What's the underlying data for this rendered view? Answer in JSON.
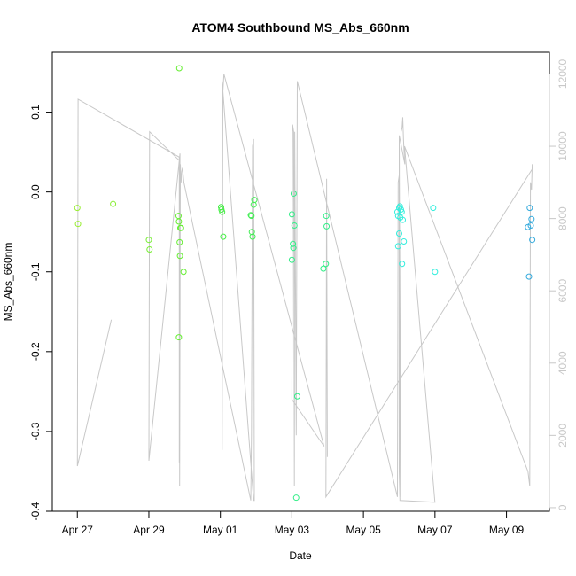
{
  "chart_data": {
    "type": "scatter",
    "title": "ATOM4 Southbound MS_Abs_660nm",
    "xlabel": "Date",
    "ylabel": "MS_Abs_660nm",
    "x_ticks": [
      {
        "label": "Apr 27",
        "day": 0
      },
      {
        "label": "Apr 29",
        "day": 2
      },
      {
        "label": "May 01",
        "day": 4
      },
      {
        "label": "May 03",
        "day": 6
      },
      {
        "label": "May 05",
        "day": 8
      },
      {
        "label": "May 07",
        "day": 10
      },
      {
        "label": "May 09",
        "day": 12
      }
    ],
    "xlim_days": [
      -0.7,
      13.2
    ],
    "ylim": [
      -0.4,
      0.175
    ],
    "y_ticks": [
      {
        "label": "0.1",
        "value": 0.1
      },
      {
        "label": "0.0",
        "value": 0.0
      },
      {
        "label": "-0.1",
        "value": -0.1
      },
      {
        "label": "-0.2",
        "value": -0.2
      },
      {
        "label": "-0.3",
        "value": -0.3
      },
      {
        "label": "-0.4",
        "value": -0.4
      }
    ],
    "y2_label": "",
    "y2lim": [
      -100,
      12600
    ],
    "y2_ticks": [
      {
        "label": "0",
        "value": 0
      },
      {
        "label": "2000",
        "value": 2000
      },
      {
        "label": "4000",
        "value": 4000
      },
      {
        "label": "6000",
        "value": 6000
      },
      {
        "label": "8000",
        "value": 8000
      },
      {
        "label": "10000",
        "value": 10000
      },
      {
        "label": "12000",
        "value": 12000
      }
    ],
    "points": [
      {
        "day": 0.0,
        "y": -0.02,
        "color": "#99ee33"
      },
      {
        "day": 0.02,
        "y": -0.04,
        "color": "#99ee33"
      },
      {
        "day": 1.0,
        "y": -0.015,
        "color": "#88ee33"
      },
      {
        "day": 2.0,
        "y": -0.06,
        "color": "#77ee33"
      },
      {
        "day": 2.02,
        "y": -0.072,
        "color": "#77ee33"
      },
      {
        "day": 2.85,
        "y": 0.155,
        "color": "#66ee33"
      },
      {
        "day": 2.83,
        "y": -0.03,
        "color": "#66ee33"
      },
      {
        "day": 2.84,
        "y": -0.037,
        "color": "#66ee33"
      },
      {
        "day": 2.88,
        "y": -0.045,
        "color": "#66ee33"
      },
      {
        "day": 2.9,
        "y": -0.045,
        "color": "#66ee33"
      },
      {
        "day": 2.86,
        "y": -0.063,
        "color": "#66ee33"
      },
      {
        "day": 2.87,
        "y": -0.08,
        "color": "#66ee33"
      },
      {
        "day": 2.97,
        "y": -0.1,
        "color": "#66ee33"
      },
      {
        "day": 2.84,
        "y": -0.182,
        "color": "#66ee33"
      },
      {
        "day": 4.02,
        "y": -0.019,
        "color": "#44ee44"
      },
      {
        "day": 4.03,
        "y": -0.022,
        "color": "#44ee44"
      },
      {
        "day": 4.05,
        "y": -0.025,
        "color": "#44ee44"
      },
      {
        "day": 4.08,
        "y": -0.056,
        "color": "#44ee44"
      },
      {
        "day": 4.85,
        "y": -0.029,
        "color": "#44ee55"
      },
      {
        "day": 4.87,
        "y": -0.03,
        "color": "#44ee55"
      },
      {
        "day": 4.88,
        "y": -0.05,
        "color": "#44ee55"
      },
      {
        "day": 4.9,
        "y": -0.056,
        "color": "#44ee55"
      },
      {
        "day": 4.93,
        "y": -0.016,
        "color": "#44ee55"
      },
      {
        "day": 4.95,
        "y": -0.01,
        "color": "#44ee55"
      },
      {
        "day": 6.0,
        "y": -0.028,
        "color": "#33ee88"
      },
      {
        "day": 6.05,
        "y": -0.002,
        "color": "#33ee88"
      },
      {
        "day": 6.07,
        "y": -0.042,
        "color": "#33ee88"
      },
      {
        "day": 6.03,
        "y": -0.065,
        "color": "#33ee88"
      },
      {
        "day": 6.04,
        "y": -0.07,
        "color": "#33ee88"
      },
      {
        "day": 6.0,
        "y": -0.085,
        "color": "#33ee88"
      },
      {
        "day": 6.15,
        "y": -0.256,
        "color": "#33ee88"
      },
      {
        "day": 6.12,
        "y": -0.383,
        "color": "#33ee88"
      },
      {
        "day": 6.88,
        "y": -0.096,
        "color": "#33ee88"
      },
      {
        "day": 6.95,
        "y": -0.09,
        "color": "#33ee88"
      },
      {
        "day": 6.96,
        "y": -0.03,
        "color": "#33ee88"
      },
      {
        "day": 6.97,
        "y": -0.043,
        "color": "#33ee88"
      },
      {
        "day": 8.95,
        "y": -0.025,
        "color": "#33eedd"
      },
      {
        "day": 8.97,
        "y": -0.03,
        "color": "#33eedd"
      },
      {
        "day": 9.0,
        "y": -0.02,
        "color": "#33eedd"
      },
      {
        "day": 9.02,
        "y": -0.018,
        "color": "#33eedd"
      },
      {
        "day": 9.05,
        "y": -0.022,
        "color": "#33eedd"
      },
      {
        "day": 9.07,
        "y": -0.025,
        "color": "#33eedd"
      },
      {
        "day": 9.03,
        "y": -0.032,
        "color": "#33eedd"
      },
      {
        "day": 9.1,
        "y": -0.035,
        "color": "#33eedd"
      },
      {
        "day": 9.0,
        "y": -0.052,
        "color": "#33eedd"
      },
      {
        "day": 9.13,
        "y": -0.062,
        "color": "#33eedd"
      },
      {
        "day": 8.97,
        "y": -0.068,
        "color": "#33eedd"
      },
      {
        "day": 9.08,
        "y": -0.09,
        "color": "#33eedd"
      },
      {
        "day": 9.95,
        "y": -0.02,
        "color": "#33eedd"
      },
      {
        "day": 10.0,
        "y": -0.1,
        "color": "#33eedd"
      },
      {
        "day": 12.65,
        "y": -0.02,
        "color": "#33aadd"
      },
      {
        "day": 12.7,
        "y": -0.034,
        "color": "#33aadd"
      },
      {
        "day": 12.68,
        "y": -0.042,
        "color": "#33aadd"
      },
      {
        "day": 12.6,
        "y": -0.044,
        "color": "#33aadd"
      },
      {
        "day": 12.72,
        "y": -0.06,
        "color": "#33aadd"
      },
      {
        "day": 12.63,
        "y": -0.106,
        "color": "#33aadd"
      }
    ],
    "secondary_line": {
      "color": "#c8c8c8",
      "y2_values": [
        {
          "day": 0.95,
          "v": 5200
        },
        {
          "day": 0.0,
          "v": 1150
        },
        {
          "day": 0.02,
          "v": 11300
        },
        {
          "day": 2.85,
          "v": 9700
        },
        {
          "day": 2.85,
          "v": 1250
        },
        {
          "day": 2.87,
          "v": 9800
        },
        {
          "day": 2.0,
          "v": 1300
        },
        {
          "day": 2.02,
          "v": 10400
        },
        {
          "day": 2.86,
          "v": 9600
        },
        {
          "day": 2.86,
          "v": 600
        },
        {
          "day": 2.88,
          "v": 9500
        },
        {
          "day": 2.9,
          "v": 9000
        },
        {
          "day": 2.92,
          "v": 9300
        },
        {
          "day": 2.94,
          "v": 9400
        },
        {
          "day": 2.96,
          "v": 9200
        },
        {
          "day": 2.98,
          "v": 9000
        },
        {
          "day": 4.85,
          "v": 200
        },
        {
          "day": 4.87,
          "v": 2000
        },
        {
          "day": 4.9,
          "v": 10000
        },
        {
          "day": 4.93,
          "v": 10200
        },
        {
          "day": 4.95,
          "v": 200
        },
        {
          "day": 4.93,
          "v": 200
        },
        {
          "day": 4.05,
          "v": 11800
        },
        {
          "day": 4.05,
          "v": 1600
        },
        {
          "day": 4.07,
          "v": 11500
        },
        {
          "day": 4.1,
          "v": 12000
        },
        {
          "day": 6.9,
          "v": 1700
        },
        {
          "day": 6.0,
          "v": 3000
        },
        {
          "day": 6.02,
          "v": 10600
        },
        {
          "day": 6.05,
          "v": 10400
        },
        {
          "day": 6.07,
          "v": 600
        },
        {
          "day": 6.08,
          "v": 10400
        },
        {
          "day": 6.12,
          "v": 2000
        },
        {
          "day": 6.15,
          "v": 11800
        },
        {
          "day": 8.95,
          "v": 300
        },
        {
          "day": 8.97,
          "v": 9000
        },
        {
          "day": 9.0,
          "v": 9200
        },
        {
          "day": 9.02,
          "v": 300
        },
        {
          "day": 9.05,
          "v": 10400
        },
        {
          "day": 9.08,
          "v": 10500
        },
        {
          "day": 9.1,
          "v": 10800
        },
        {
          "day": 9.12,
          "v": 10200
        },
        {
          "day": 9.14,
          "v": 9800
        },
        {
          "day": 9.16,
          "v": 9500
        },
        {
          "day": 9.0,
          "v": 10300
        },
        {
          "day": 9.0,
          "v": 1000
        },
        {
          "day": 9.02,
          "v": 200
        },
        {
          "day": 10.0,
          "v": 150
        },
        {
          "day": 9.15,
          "v": 10000
        },
        {
          "day": 12.6,
          "v": 1000
        },
        {
          "day": 12.65,
          "v": 600
        },
        {
          "day": 12.67,
          "v": 9000
        },
        {
          "day": 12.7,
          "v": 8800
        },
        {
          "day": 12.72,
          "v": 9500
        },
        {
          "day": 12.74,
          "v": 9400
        },
        {
          "day": 6.95,
          "v": 300
        },
        {
          "day": 6.97,
          "v": 9100
        },
        {
          "day": 6.99,
          "v": 1400
        }
      ]
    }
  }
}
